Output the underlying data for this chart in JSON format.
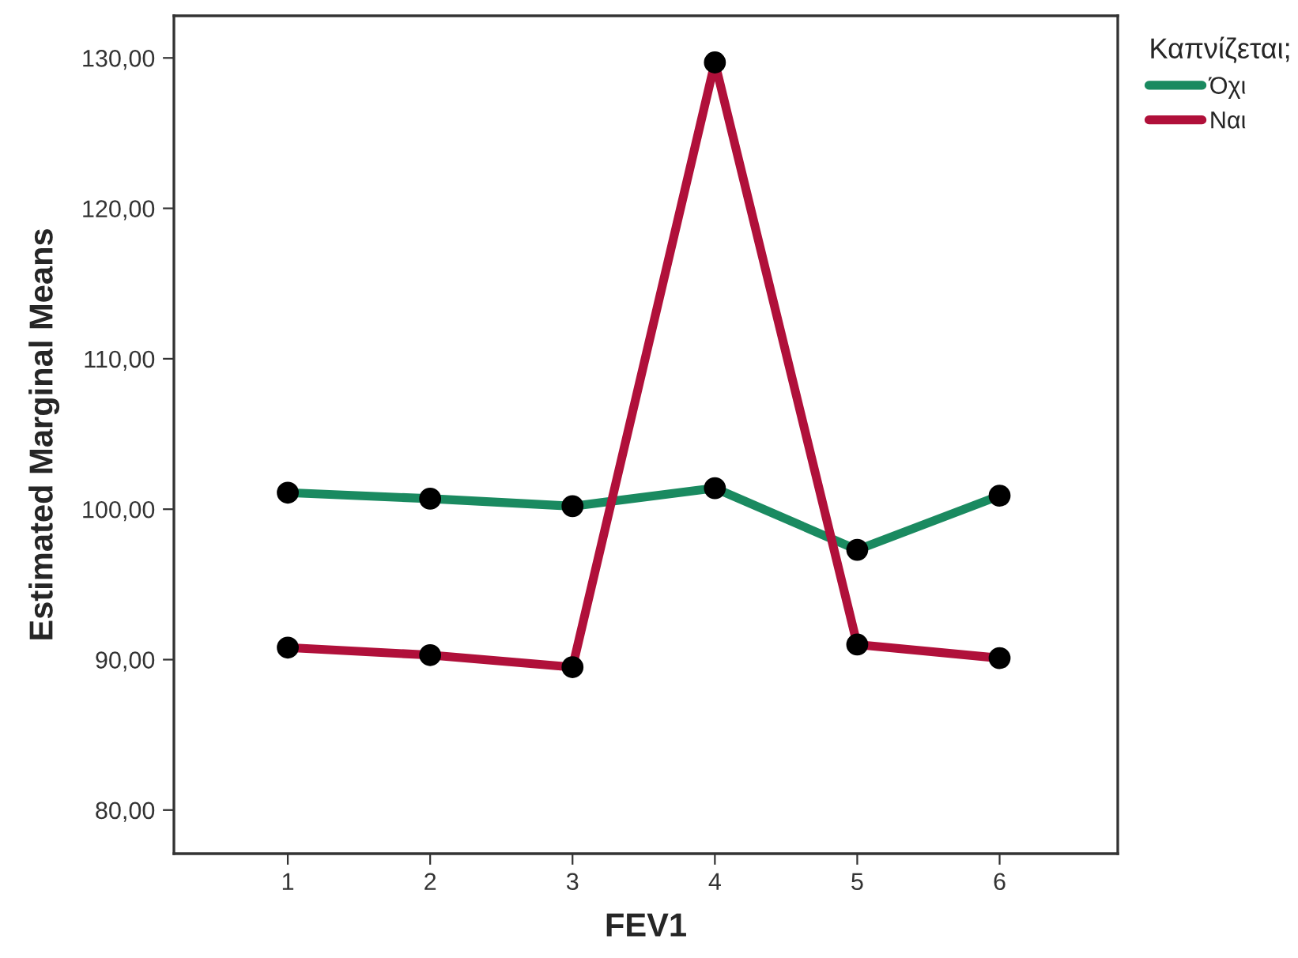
{
  "chart_data": {
    "type": "line",
    "xlabel": "FEV1",
    "ylabel": "Estimated Marginal Means",
    "legend_title": "Καπνίζεται;",
    "categories": [
      "1",
      "2",
      "3",
      "4",
      "5",
      "6"
    ],
    "series": [
      {
        "name": "Όχι",
        "color": "#1a8a60",
        "values": [
          101.1,
          100.7,
          100.2,
          101.4,
          97.3,
          100.9
        ]
      },
      {
        "name": "Ναι",
        "color": "#b0103a",
        "values": [
          90.8,
          90.3,
          89.5,
          129.7,
          91.0,
          90.1
        ]
      }
    ],
    "ylim": [
      77.1,
      132.8
    ],
    "yticks": [
      {
        "value": 80,
        "label": "80,00"
      },
      {
        "value": 90,
        "label": "90,00"
      },
      {
        "value": 100,
        "label": "100,00"
      },
      {
        "value": 110,
        "label": "110,00"
      },
      {
        "value": 120,
        "label": "120,00"
      },
      {
        "value": 130,
        "label": "130,00"
      }
    ],
    "grid": false,
    "legend": "top right",
    "marker": "circle",
    "line_style": "solid"
  }
}
